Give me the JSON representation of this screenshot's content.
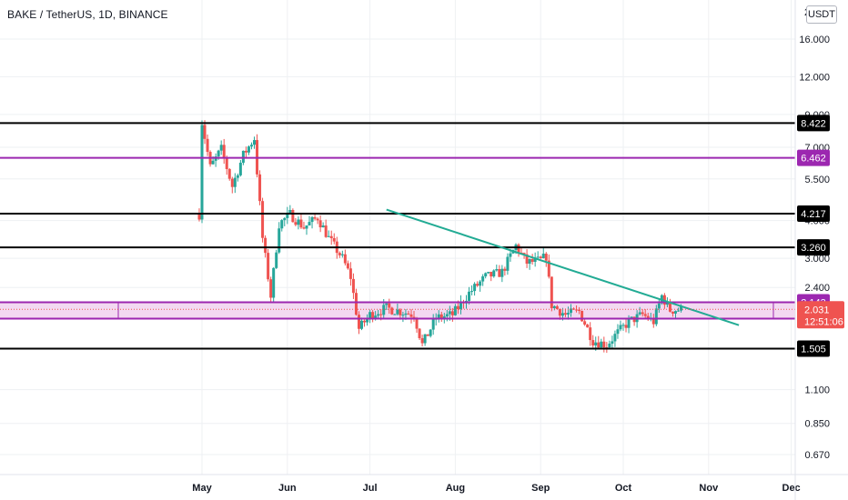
{
  "header": {
    "title": "BAKE / TetherUS, 1D, BINANCE",
    "unit_label": "USDT"
  },
  "colors": {
    "up": "#26a69a",
    "down": "#ef5350",
    "level": "#000000",
    "purple": "#9c27b0",
    "trend": "#22ab94",
    "zone_fill": "#f3d9f1",
    "grid": "#eef0f3"
  },
  "chart_data": {
    "type": "candlestick",
    "scale": "log",
    "ylim": [
      0.55,
      21
    ],
    "x_ticks": [
      "May",
      "Jun",
      "Jul",
      "Aug",
      "Sep",
      "Oct",
      "Nov",
      "Dec"
    ],
    "y_ticks": [
      "16.000",
      "12.000",
      "9.000",
      "7.000",
      "5.500",
      "4.000",
      "3.000",
      "2.400",
      "1.100",
      "0.850",
      "0.670"
    ],
    "y_tick_values": [
      16,
      12,
      9,
      7,
      5.5,
      4,
      3,
      2.4,
      1.1,
      0.85,
      0.67
    ],
    "top_clipped_label": "2",
    "levels": [
      {
        "value": 8.422,
        "label": "8.422",
        "color": "#000000"
      },
      {
        "value": 6.462,
        "label": "6.462",
        "color": "#9c27b0"
      },
      {
        "value": 4.217,
        "label": "4.217",
        "color": "#000000"
      },
      {
        "value": 3.26,
        "label": "3.260",
        "color": "#000000"
      },
      {
        "value": 2.143,
        "label": "2.143",
        "color": "#9c27b0"
      },
      {
        "value": 1.891,
        "label": "1.891",
        "color": "#9c27b0"
      },
      {
        "value": 1.505,
        "label": "1.505",
        "color": "#000000"
      }
    ],
    "zone": {
      "top": 2.143,
      "bottom": 1.891
    },
    "last_price": {
      "value": 2.031,
      "label": "2.031",
      "countdown": "12:51:06"
    },
    "trendline": [
      {
        "date": "2021-07-07",
        "value": 4.35
      },
      {
        "date": "2021-11-12",
        "value": 1.8
      }
    ],
    "candle_path": [
      [
        "2021-04-30",
        4.2
      ],
      [
        "2021-05-01",
        8.5
      ],
      [
        "2021-05-04",
        6.0
      ],
      [
        "2021-05-08",
        6.9
      ],
      [
        "2021-05-12",
        5.2
      ],
      [
        "2021-05-16",
        6.6
      ],
      [
        "2021-05-20",
        7.5
      ],
      [
        "2021-05-23",
        3.5
      ],
      [
        "2021-05-26",
        2.25
      ],
      [
        "2021-05-29",
        3.9
      ],
      [
        "2021-06-02",
        4.2
      ],
      [
        "2021-06-07",
        3.8
      ],
      [
        "2021-06-12",
        4.1
      ],
      [
        "2021-06-16",
        3.5
      ],
      [
        "2021-06-21",
        3.0
      ],
      [
        "2021-06-24",
        2.6
      ],
      [
        "2021-06-27",
        1.75
      ],
      [
        "2021-07-01",
        1.95
      ],
      [
        "2021-07-07",
        2.05
      ],
      [
        "2021-07-12",
        2.0
      ],
      [
        "2021-07-17",
        1.95
      ],
      [
        "2021-07-20",
        1.55
      ],
      [
        "2021-07-25",
        1.9
      ],
      [
        "2021-07-31",
        1.95
      ],
      [
        "2021-08-06",
        2.3
      ],
      [
        "2021-08-12",
        2.6
      ],
      [
        "2021-08-18",
        2.7
      ],
      [
        "2021-08-23",
        3.3
      ],
      [
        "2021-08-27",
        2.9
      ],
      [
        "2021-09-01",
        2.95
      ],
      [
        "2021-09-03",
        3.05
      ],
      [
        "2021-09-05",
        2.1
      ],
      [
        "2021-09-10",
        1.95
      ],
      [
        "2021-09-15",
        2.0
      ],
      [
        "2021-09-20",
        1.6
      ],
      [
        "2021-09-25",
        1.55
      ],
      [
        "2021-09-29",
        1.7
      ],
      [
        "2021-10-03",
        1.85
      ],
      [
        "2021-10-08",
        1.95
      ],
      [
        "2021-10-12",
        1.85
      ],
      [
        "2021-10-15",
        2.25
      ],
      [
        "2021-10-18",
        2.02
      ],
      [
        "2021-10-22",
        2.03
      ]
    ]
  }
}
